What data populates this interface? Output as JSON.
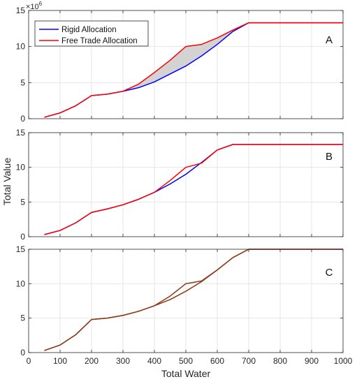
{
  "figure": {
    "xlabel": "Total Water",
    "ylabel": "Total Value",
    "multiplier_label": "×10",
    "multiplier_exponent": "6"
  },
  "legend": {
    "items": [
      {
        "label": "Rigid Allocation",
        "color": "#0000ff"
      },
      {
        "label": "Free Trade Allocation",
        "color": "#ff0000"
      }
    ]
  },
  "colors": {
    "rigid": "#0000ff",
    "free": "#ff0000",
    "fill": "#d3d3d3",
    "grid": "#e6e6e6",
    "axis": "#262626",
    "panel_c_line": "#8b3a1a"
  },
  "chart_data": [
    {
      "type": "line",
      "panel": "A",
      "xlim": [
        0,
        1000
      ],
      "ylim": [
        0,
        15
      ],
      "y_multiplier": "1e6",
      "x_ticks": [
        0,
        100,
        200,
        300,
        400,
        500,
        600,
        700,
        800,
        900,
        1000
      ],
      "y_ticks": [
        0,
        5,
        10,
        15
      ],
      "grid": true,
      "legend_position": "top-left",
      "shaded_region": "between series",
      "x": [
        50,
        100,
        150,
        200,
        250,
        300,
        350,
        400,
        450,
        500,
        550,
        600,
        650,
        700,
        750,
        800,
        850,
        900,
        950,
        1000
      ],
      "series": [
        {
          "name": "Rigid Allocation",
          "values": [
            0.2,
            0.8,
            1.8,
            3.2,
            3.4,
            3.8,
            4.3,
            5.1,
            6.2,
            7.3,
            8.7,
            10.3,
            12.1,
            13.3,
            13.3,
            13.3,
            13.3,
            13.3,
            13.3,
            13.3
          ]
        },
        {
          "name": "Free Trade Allocation",
          "values": [
            0.2,
            0.8,
            1.8,
            3.2,
            3.4,
            3.8,
            4.8,
            6.4,
            8.1,
            10.0,
            10.3,
            11.2,
            12.3,
            13.3,
            13.3,
            13.3,
            13.3,
            13.3,
            13.3,
            13.3
          ]
        }
      ]
    },
    {
      "type": "line",
      "panel": "B",
      "xlim": [
        0,
        1000
      ],
      "ylim": [
        0,
        15
      ],
      "x_ticks": [
        0,
        100,
        200,
        300,
        400,
        500,
        600,
        700,
        800,
        900,
        1000
      ],
      "y_ticks": [
        0,
        5,
        10,
        15
      ],
      "grid": true,
      "x": [
        50,
        100,
        150,
        200,
        250,
        300,
        350,
        400,
        450,
        500,
        550,
        600,
        650,
        700,
        750,
        800,
        850,
        900,
        950,
        1000
      ],
      "series": [
        {
          "name": "Rigid Allocation",
          "values": [
            0.3,
            0.9,
            2.0,
            3.5,
            4.0,
            4.6,
            5.4,
            6.4,
            7.6,
            9.0,
            10.7,
            12.5,
            13.3,
            13.3,
            13.3,
            13.3,
            13.3,
            13.3,
            13.3,
            13.3
          ]
        },
        {
          "name": "Free Trade Allocation",
          "values": [
            0.3,
            0.9,
            2.0,
            3.5,
            4.0,
            4.6,
            5.4,
            6.4,
            8.1,
            10.0,
            10.6,
            12.5,
            13.3,
            13.3,
            13.3,
            13.3,
            13.3,
            13.3,
            13.3,
            13.3
          ]
        }
      ]
    },
    {
      "type": "line",
      "panel": "C",
      "xlim": [
        0,
        1000
      ],
      "ylim": [
        0,
        15
      ],
      "x_ticks": [
        0,
        100,
        200,
        300,
        400,
        500,
        600,
        700,
        800,
        900,
        1000
      ],
      "y_ticks": [
        0,
        5,
        10,
        15
      ],
      "grid": true,
      "x": [
        50,
        100,
        150,
        200,
        250,
        300,
        350,
        400,
        450,
        500,
        550,
        600,
        650,
        700,
        750,
        800,
        850,
        900,
        950,
        1000
      ],
      "series": [
        {
          "name": "Rigid Allocation",
          "values": [
            0.3,
            1.1,
            2.6,
            4.8,
            5.0,
            5.4,
            6.0,
            6.8,
            7.7,
            8.9,
            10.3,
            12.0,
            13.8,
            15.0,
            15.0,
            15.0,
            15.0,
            15.0,
            15.0,
            15.0
          ]
        },
        {
          "name": "Free Trade Allocation",
          "values": [
            0.3,
            1.1,
            2.6,
            4.8,
            5.0,
            5.4,
            6.0,
            6.8,
            8.2,
            10.0,
            10.4,
            12.0,
            13.8,
            15.0,
            15.0,
            15.0,
            15.0,
            15.0,
            15.0,
            15.0
          ]
        }
      ]
    }
  ]
}
